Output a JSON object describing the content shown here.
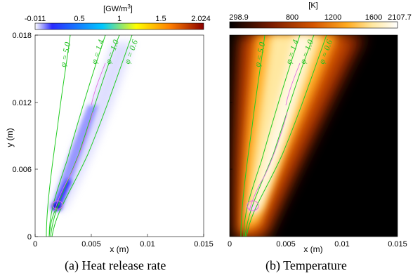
{
  "figures": [
    {
      "caption": "(a)  Heat release rate",
      "colorbar": {
        "unit_base": "[GW/m",
        "unit_sup": "3",
        "unit_close": "]",
        "ticks": [
          "-0.011",
          "0.5",
          "1",
          "1.5",
          "2.024"
        ],
        "colors": [
          "#ffffff",
          "#2b2bff",
          "#00c8ff",
          "#ffff00",
          "#ff7f00",
          "#8b0000"
        ]
      },
      "xlabel": "x (m)",
      "ylabel": "y (m)",
      "xticks": [
        "0",
        "0.005",
        "0.01",
        "0.015"
      ],
      "yticks": [
        "0",
        "0.006",
        "0.012",
        "0.018"
      ],
      "contour_labels": [
        "φ = 5.0",
        "φ = 1.4",
        "φ = 1.0",
        "φ = 0.6"
      ]
    },
    {
      "caption": "(b)  Temperature",
      "colorbar": {
        "unit_base": "[K]",
        "ticks": [
          "298.9",
          "800",
          "1200",
          "1600",
          "2107.7"
        ],
        "colors": [
          "#000000",
          "#7a1c00",
          "#d45500",
          "#ffab20",
          "#ffe8a0",
          "#ffffff"
        ]
      },
      "xlabel": "x (m)",
      "xticks": [
        "0",
        "0.005",
        "0.01",
        "0.015"
      ],
      "contour_labels": [
        "φ = 5.0",
        "φ = 1.4",
        "φ = 1.0",
        "φ = 0.6"
      ]
    }
  ],
  "colors": {
    "contour": "#22cc22",
    "isoline_magenta": "#e070e0"
  }
}
